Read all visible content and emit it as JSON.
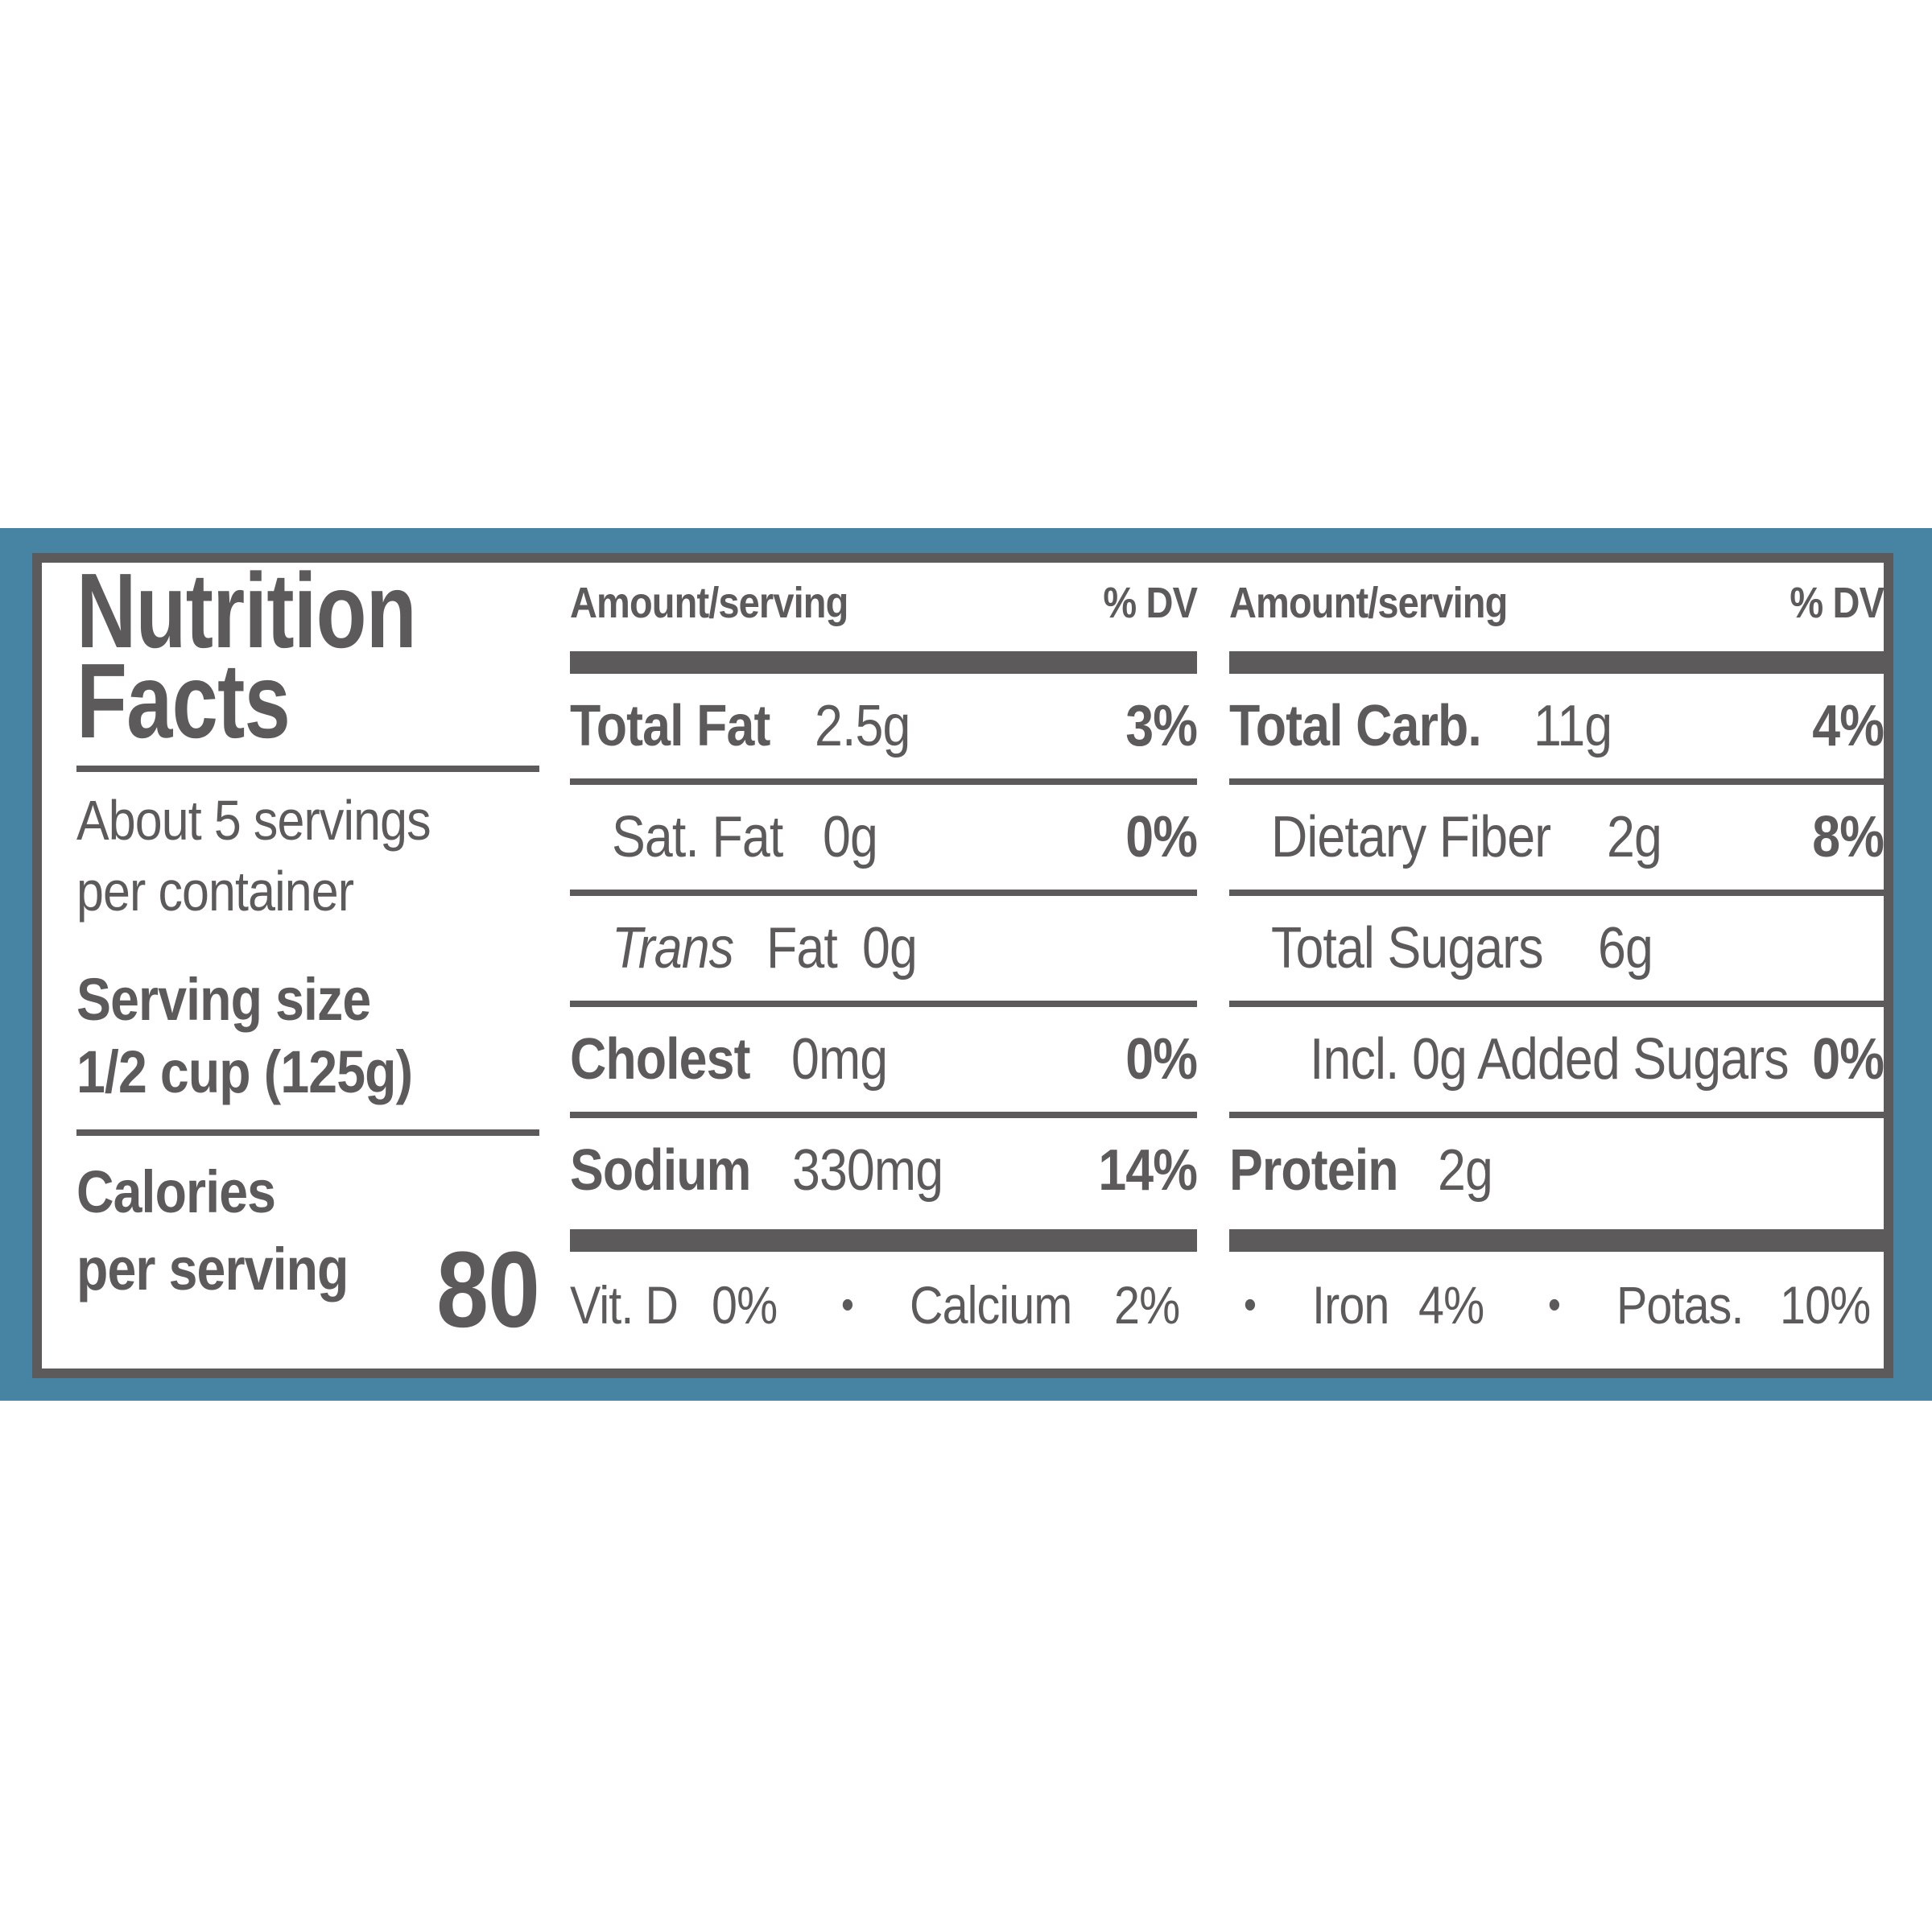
{
  "colors": {
    "band_blue": "#4783a3",
    "text_gray": "#5d5a5b",
    "panel_bg": "#ffffff"
  },
  "left": {
    "title_line1": "Nutrition",
    "title_line2": "Facts",
    "servings_line1": "About 5 servings",
    "servings_line2": "per container",
    "serving_size_label": "Serving size",
    "serving_size_value": "1/2 cup (125g)",
    "calories_label": "Calories",
    "calories_sub": "per serving",
    "calories_value": "80"
  },
  "mid": {
    "header": {
      "amount": "Amount/serving",
      "dv": "% DV"
    },
    "rows": [
      {
        "name": "Total Fat",
        "amount": "2.5g",
        "dv": "3%"
      },
      {
        "name": "Sat. Fat",
        "amount": "0g",
        "dv": "0%"
      },
      {
        "name_italic": "Trans",
        "name": "Fat",
        "amount": "0g",
        "dv": ""
      },
      {
        "name": "Cholest",
        "amount": "0mg",
        "dv": "0%"
      },
      {
        "name": "Sodium",
        "amount": "330mg",
        "dv": "14%"
      }
    ]
  },
  "right": {
    "header": {
      "amount": "Amount/serving",
      "dv": "% DV"
    },
    "rows": [
      {
        "name": "Total Carb.",
        "amount": "11g",
        "dv": "4%"
      },
      {
        "name": "Dietary Fiber",
        "amount": "2g",
        "dv": "8%"
      },
      {
        "name": "Total Sugars",
        "amount": "6g",
        "dv": ""
      },
      {
        "name": "Incl. 0g Added Sugars",
        "amount": "",
        "dv": "0%"
      },
      {
        "name": "Protein",
        "amount": "2g",
        "dv": ""
      }
    ]
  },
  "footer": {
    "bullet": "•",
    "items": [
      {
        "name": "Vit. D",
        "value": "0%"
      },
      {
        "name": "Calcium",
        "value": "2%"
      },
      {
        "name": "Iron",
        "value": "4%"
      },
      {
        "name": "Potas.",
        "value": "10%"
      }
    ]
  }
}
